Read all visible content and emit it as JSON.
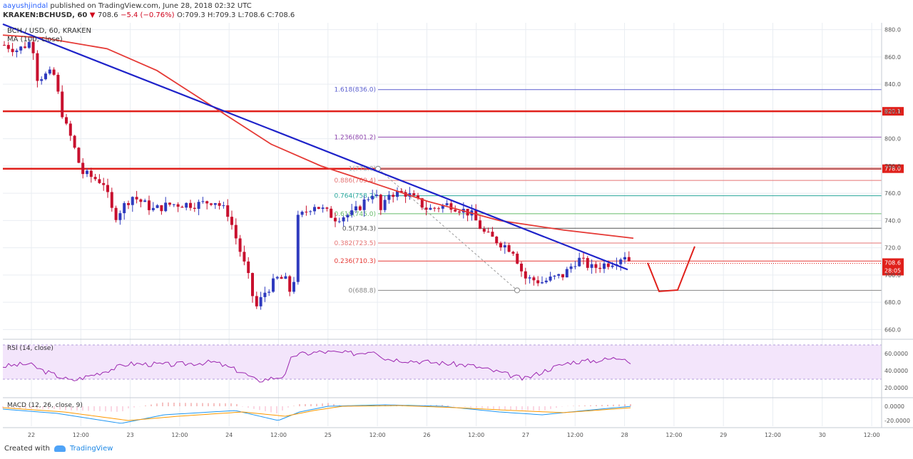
{
  "header": {
    "author": "aayushjindal",
    "published": "published on TradingView.com, June 28, 2018 02:32 UTC",
    "symbol": "KRAKEN:BCHUSD, 60",
    "last": "708.6",
    "change": "−5.4 (−0.76%)",
    "ohlc": "O:709.3 H:709.3 L:708.6 C:708.6"
  },
  "footer": {
    "created_with": "Created with",
    "brand": "TradingView"
  },
  "colors": {
    "up": "#2f3bbf",
    "down": "#c8102e",
    "ma": "#e53935",
    "trend": "#1e22c9",
    "rsi": "#9c27b0",
    "macd": "#2196f3",
    "signal": "#ff9800",
    "grid": "#e9edf2"
  },
  "chart_data": {
    "type": "candlestick",
    "title": "BCH / USD, 60, KRAKEN",
    "ma_label": "MA (100, close)",
    "ylim": [
      655,
      885
    ],
    "x_ticks": [
      "22",
      "12:00",
      "23",
      "12:00",
      "24",
      "12:00",
      "25",
      "12:00",
      "26",
      "12:00",
      "27",
      "12:00",
      "28",
      "12:00",
      "29",
      "12:00",
      "30",
      "12:00"
    ],
    "y_ticks": [
      660,
      680,
      700,
      720,
      740,
      760,
      780,
      800,
      820,
      840,
      860,
      880
    ],
    "horizontal_levels": [
      {
        "value": 820.1,
        "label": "820.1"
      },
      {
        "value": 778.0,
        "label": "778.0"
      }
    ],
    "last_price": {
      "value": 708.6,
      "label": "708.6",
      "countdown": "28:05"
    },
    "fibonacci": [
      {
        "ratio": "1.618",
        "value": 836.0,
        "label": "1.618(836.0)"
      },
      {
        "ratio": "1.236",
        "value": 801.2,
        "label": "1.236(801.2)"
      },
      {
        "ratio": "1",
        "value": 778.0,
        "label": "1(778.0)"
      },
      {
        "ratio": "0.886",
        "value": 769.4,
        "label": "0.886(769.4)"
      },
      {
        "ratio": "0.764",
        "value": 758.2,
        "label": "0.764(758.2)"
      },
      {
        "ratio": "0.618",
        "value": 745.0,
        "label": "0.618(745.0)"
      },
      {
        "ratio": "0.5",
        "value": 734.3,
        "label": "0.5(734.3)"
      },
      {
        "ratio": "0.382",
        "value": 723.5,
        "label": "0.382(723.5)"
      },
      {
        "ratio": "0.236",
        "value": 710.3,
        "label": "0.236(710.3)"
      },
      {
        "ratio": "0",
        "value": 688.8,
        "label": "0(688.8)"
      }
    ],
    "rsi": {
      "label": "RSI (14, close)",
      "ticks": [
        "20.0000",
        "40.0000",
        "60.0000"
      ],
      "ylim": [
        10,
        75
      ],
      "band": [
        30,
        70
      ]
    },
    "macd": {
      "label": "MACD (12, 26, close, 9)",
      "ticks": [
        "0.0000",
        "-20.0000"
      ],
      "ylim": [
        -28,
        10
      ]
    }
  }
}
